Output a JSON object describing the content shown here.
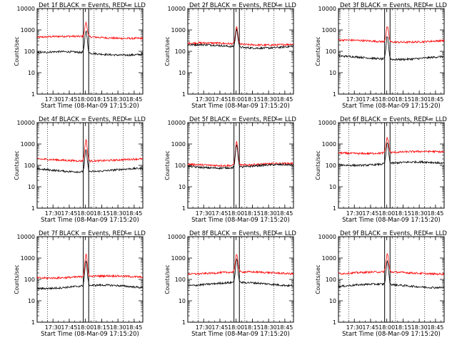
{
  "figure": {
    "panel_titles": [
      "Det 1f BLACK = Events, RED = LLD",
      "Det 2f BLACK = Events, RED = LLD",
      "Det 3f BLACK = Events, RED = LLD",
      "Det 4f BLACK = Events, RED = LLD",
      "Det 5f BLACK = Events, RED = LLD",
      "Det 6f BLACK = Events, RED = LLD",
      "Det 7f BLACK = Events, RED = LLD",
      "Det 8f BLACK = Events, RED = LLD",
      "Det 9f BLACK = Events, RED = LLD"
    ],
    "xlabel": "Start Time (08-Mar-09 17:15:20)",
    "ylabel": "Counts/sec"
  },
  "chart_data": {
    "type": "line",
    "layout": "3x3 grid of panels",
    "x_ticks": [
      "17:30",
      "17:45",
      "18:00",
      "18:15",
      "18:30",
      "18:45"
    ],
    "x_range": [
      "17:15:20",
      "18:53:00"
    ],
    "y_ticks": [
      "1",
      "10",
      "100",
      "1000",
      "10000"
    ],
    "y_range": [
      1,
      10000
    ],
    "y_scale": "log",
    "dotted_vertical_lines_at": [
      "17:25",
      "18:08",
      "18:35"
    ],
    "solid_vertical_lines_at": [
      "17:58",
      "18:03"
    ],
    "colors": {
      "events": "#000000",
      "lld": "#ff0000"
    },
    "panels": [
      {
        "detector": "1f",
        "events_baseline": 80,
        "events_peak": 900,
        "lld_baseline": 450,
        "lld_peak": 2000
      },
      {
        "detector": "2f",
        "events_baseline": 170,
        "events_peak": 1100,
        "lld_baseline": 220,
        "lld_peak": 1300
      },
      {
        "detector": "3f",
        "events_baseline": 50,
        "events_peak": 600,
        "lld_baseline": 300,
        "lld_peak": 1500
      },
      {
        "detector": "4f",
        "events_baseline": 60,
        "events_peak": 600,
        "lld_baseline": 180,
        "lld_peak": 1700
      },
      {
        "detector": "5f",
        "events_baseline": 90,
        "events_peak": 1000,
        "lld_baseline": 110,
        "lld_peak": 1400
      },
      {
        "detector": "6f",
        "events_baseline": 120,
        "events_peak": 1100,
        "lld_baseline": 400,
        "lld_peak": 2000
      },
      {
        "detector": "7f",
        "events_baseline": 45,
        "events_peak": 600,
        "lld_baseline": 130,
        "lld_peak": 1400
      },
      {
        "detector": "8f",
        "events_baseline": 60,
        "events_peak": 700,
        "lld_baseline": 200,
        "lld_peak": 1400
      },
      {
        "detector": "9f",
        "events_baseline": 50,
        "events_peak": 600,
        "lld_baseline": 200,
        "lld_peak": 1400
      }
    ]
  }
}
